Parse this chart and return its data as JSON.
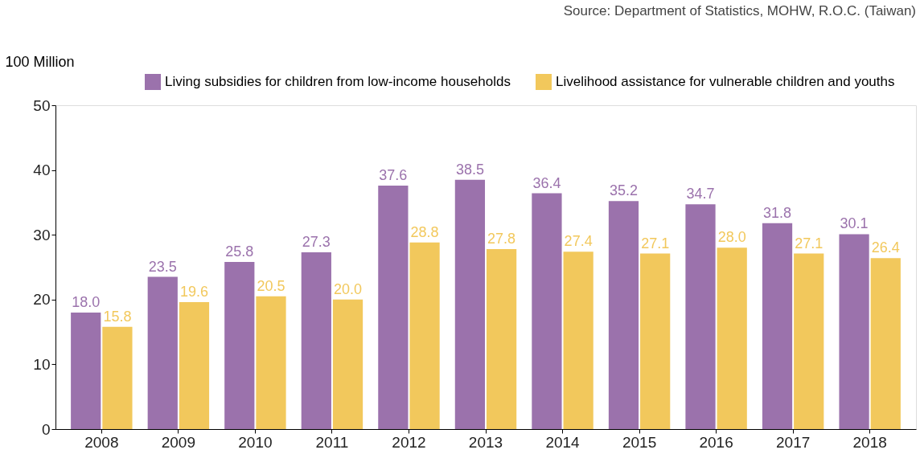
{
  "chart_data": {
    "type": "bar",
    "ylabel": "100 Million",
    "annotations": [
      "Source: Department of Statistics, MOHW, R.O.C. (Taiwan)"
    ],
    "categories": [
      "2008",
      "2009",
      "2010",
      "2011",
      "2012",
      "2013",
      "2014",
      "2015",
      "2016",
      "2017",
      "2018"
    ],
    "series": [
      {
        "name": "Living subsidies for children from low-income households",
        "color": "#9b72ac",
        "values": [
          18.0,
          23.5,
          25.8,
          27.3,
          37.6,
          38.5,
          36.4,
          35.2,
          34.7,
          31.8,
          30.1
        ],
        "value_labels": [
          "18.0",
          "23.5",
          "25.8",
          "27.3",
          "37.6",
          "38.5",
          "36.4",
          "35.2",
          "34.7",
          "31.8",
          "30.1"
        ]
      },
      {
        "name": "Livelihood assistance for vulnerable children and youths",
        "color": "#f2c85c",
        "values": [
          15.8,
          19.6,
          20.5,
          20.0,
          28.8,
          27.8,
          27.4,
          27.1,
          28.0,
          27.1,
          26.4
        ],
        "value_labels": [
          "15.8",
          "19.6",
          "20.5",
          "20.0",
          "28.8",
          "27.8",
          "27.4",
          "27.1",
          "28.0",
          "27.1",
          "26.4"
        ]
      }
    ],
    "ylim": [
      0,
      50
    ],
    "yticks": [
      0,
      10,
      20,
      30,
      40,
      50
    ],
    "grid": false,
    "legend": "top"
  }
}
